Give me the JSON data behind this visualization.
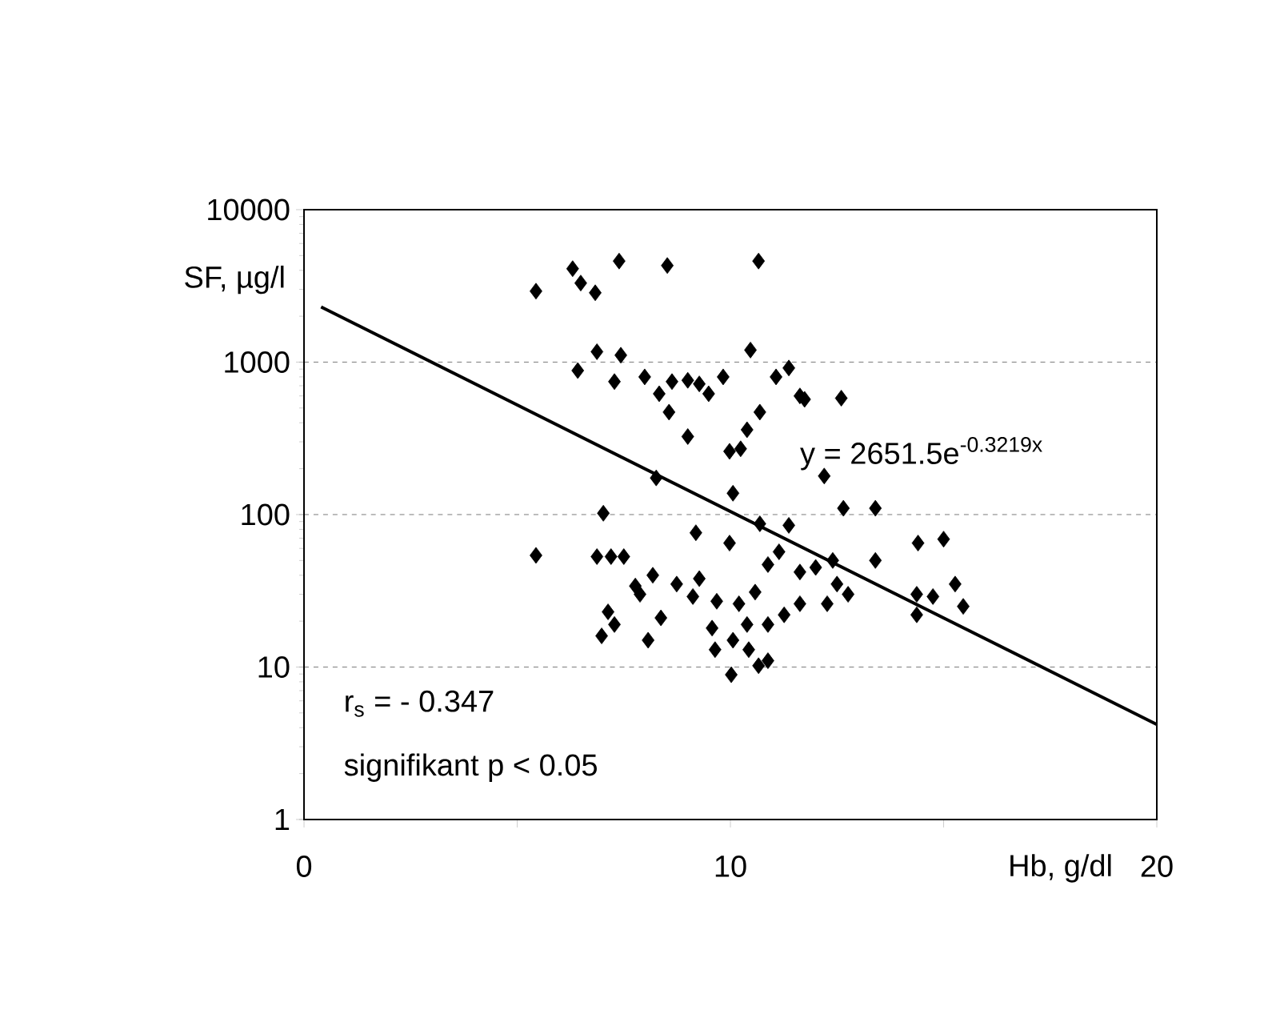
{
  "chart_data": {
    "type": "scatter",
    "xlabel": "Hb, g/dl",
    "ylabel": "SF, µg/l",
    "xlim": [
      0,
      20
    ],
    "xticks": [
      0,
      {
        "value": 5,
        "label": null
      },
      10,
      {
        "value": 15,
        "label": null
      },
      20
    ],
    "ylim": [
      1,
      10000
    ],
    "yticks": [
      1,
      10,
      100,
      1000,
      10000
    ],
    "log": "y",
    "grid": "y",
    "marker": "diamond",
    "annotations": [
      "y = 2651.5e$^{-0.3219x}$",
      "r$_{s}$ = - 0.347",
      "signifikant p < 0.05"
    ],
    "series": [
      {
        "type": "scatter",
        "color": "#000000",
        "x": [
          5.44,
          6.3,
          6.49,
          6.83,
          7.39,
          8.52,
          10.66,
          6.87,
          7.43,
          6.42,
          7.28,
          7.99,
          8.33,
          8.63,
          9.0,
          9.27,
          9.49,
          9.83,
          10.47,
          11.07,
          11.37,
          11.63,
          11.74,
          12.6,
          8.56,
          10.69,
          9.0,
          10.39,
          9.98,
          10.24,
          12.2,
          8.26,
          10.06,
          7.02,
          12.65,
          13.4,
          9.19,
          9.98,
          10.69,
          11.37,
          5.44,
          6.87,
          7.2,
          7.5,
          13.4,
          12.4,
          14.4,
          15.0,
          8.18,
          8.74,
          9.27,
          7.88,
          8.37,
          8.07,
          9.12,
          9.68,
          10.2,
          10.58,
          10.88,
          11.14,
          11.63,
          12.0,
          12.5,
          12.76,
          12.27,
          11.63,
          11.26,
          10.88,
          10.39,
          9.57,
          10.06,
          9.64,
          10.43,
          10.88,
          10.02,
          15.27,
          14.37,
          14.75,
          14.37,
          15.46,
          10.66,
          7.13,
          7.28,
          6.98,
          7.77
        ],
        "values": [
          2920,
          4100,
          3300,
          2850,
          4600,
          4300,
          4600,
          1170,
          1110,
          880,
          745,
          800,
          620,
          745,
          760,
          720,
          620,
          800,
          1200,
          800,
          915,
          600,
          570,
          580,
          470,
          470,
          325,
          360,
          260,
          270,
          179,
          174,
          138,
          102,
          110,
          110,
          76,
          65,
          87,
          85,
          54,
          53,
          53,
          53,
          50,
          50,
          65,
          69,
          40,
          35,
          38,
          30,
          21,
          15,
          29,
          27,
          26,
          31,
          47,
          57,
          42,
          45,
          35,
          30,
          26,
          26,
          22,
          19,
          19,
          18,
          15,
          13,
          13,
          11,
          8.9,
          35,
          30,
          29,
          22,
          25,
          10.2,
          23,
          19,
          16,
          34
        ]
      },
      {
        "type": "line",
        "color": "#000000",
        "marker": "none",
        "x": [
          0.4,
          20
        ],
        "values": [
          2300,
          4.2
        ]
      }
    ]
  }
}
